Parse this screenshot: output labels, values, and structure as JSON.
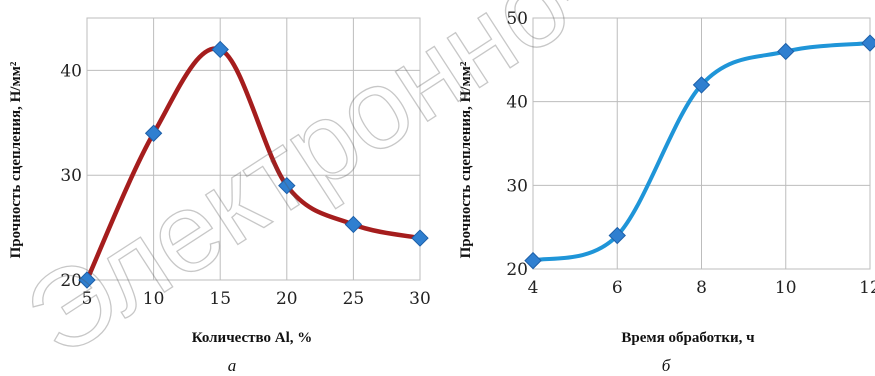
{
  "watermark": "Электронно-Российская",
  "colors": {
    "left_line": "#a51d1d",
    "right_line": "#1f95d8",
    "marker": "#2f7fd0",
    "grid": "#bdbdbd"
  },
  "chart_data": [
    {
      "type": "line",
      "caption": "а",
      "xlabel": "Количество Al, %",
      "ylabel": "Прочность сцепления, Н/мм²",
      "x": [
        5,
        10,
        15,
        20,
        25,
        30
      ],
      "xticks": [
        "5",
        "10",
        "15",
        "20",
        "25",
        "30"
      ],
      "yticks": [
        "20",
        "30",
        "40"
      ],
      "xlim": [
        5,
        30
      ],
      "ylim": [
        20,
        45
      ],
      "grid": true,
      "series": [
        {
          "values": [
            20,
            34,
            42,
            29,
            25.3,
            24
          ]
        }
      ]
    },
    {
      "type": "line",
      "caption": "б",
      "xlabel": "Время обработки, ч",
      "ylabel": "Прочность сцепления, Н/мм²",
      "x": [
        4,
        6,
        8,
        10,
        12
      ],
      "xticks": [
        "4",
        "6",
        "8",
        "10",
        "12"
      ],
      "yticks": [
        "20",
        "30",
        "40",
        "50"
      ],
      "xlim": [
        4,
        12
      ],
      "ylim": [
        20,
        50
      ],
      "grid": true,
      "series": [
        {
          "values": [
            21,
            24,
            42,
            46,
            47
          ]
        }
      ]
    }
  ]
}
